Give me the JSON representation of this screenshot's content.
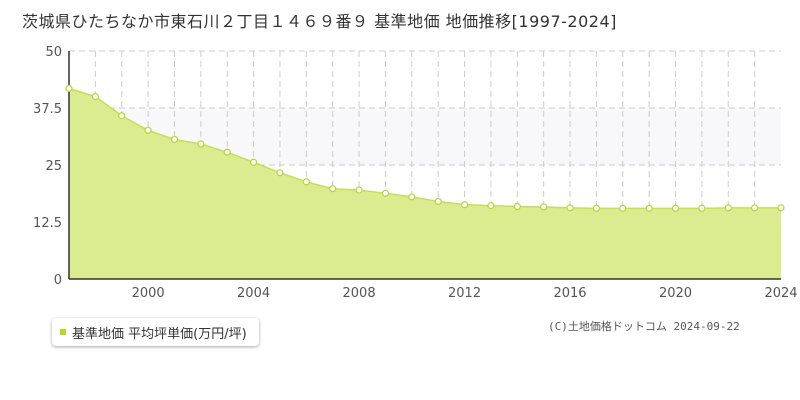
{
  "title": "茨城県ひたちなか市東石川２丁目１４６９番９ 基準地価 地価推移[1997-2024]",
  "legend_label": "基準地価 平均坪単価(万円/坪)",
  "credit": "(C)土地価格ドットコム 2024-09-22",
  "colors": {
    "fill": "#dbeb8f",
    "line": "#c5df5a",
    "band": "#f8f8fb",
    "grid": "#cccccc",
    "marker_stroke": "#b3d832"
  },
  "chart_data": {
    "type": "area",
    "x": [
      1997,
      1998,
      1999,
      2000,
      2001,
      2002,
      2003,
      2004,
      2005,
      2006,
      2007,
      2008,
      2009,
      2010,
      2011,
      2012,
      2013,
      2014,
      2015,
      2016,
      2017,
      2018,
      2019,
      2020,
      2021,
      2022,
      2023,
      2024
    ],
    "series": [
      {
        "name": "基準地価 平均坪単価(万円/坪)",
        "values": [
          41.8,
          40.0,
          35.8,
          32.6,
          30.6,
          29.6,
          27.8,
          25.6,
          23.3,
          21.3,
          19.8,
          19.5,
          18.8,
          18.0,
          17.0,
          16.3,
          16.1,
          15.9,
          15.8,
          15.6,
          15.5,
          15.5,
          15.5,
          15.5,
          15.5,
          15.6,
          15.6,
          15.6
        ]
      }
    ],
    "xlim": [
      1997,
      2024
    ],
    "ylim": [
      0,
      50
    ],
    "yticks": [
      "0",
      "12.5",
      "25",
      "37.5",
      "50"
    ],
    "ytick_values": [
      0,
      12.5,
      25,
      37.5,
      50
    ],
    "xticks": [
      "2000",
      "2004",
      "2008",
      "2012",
      "2016",
      "2020",
      "2024"
    ],
    "xtick_values": [
      2000,
      2004,
      2008,
      2012,
      2016,
      2020,
      2024
    ],
    "shaded_band": [
      25,
      37.5
    ],
    "grid": true,
    "legend_position": "bottom-left"
  }
}
